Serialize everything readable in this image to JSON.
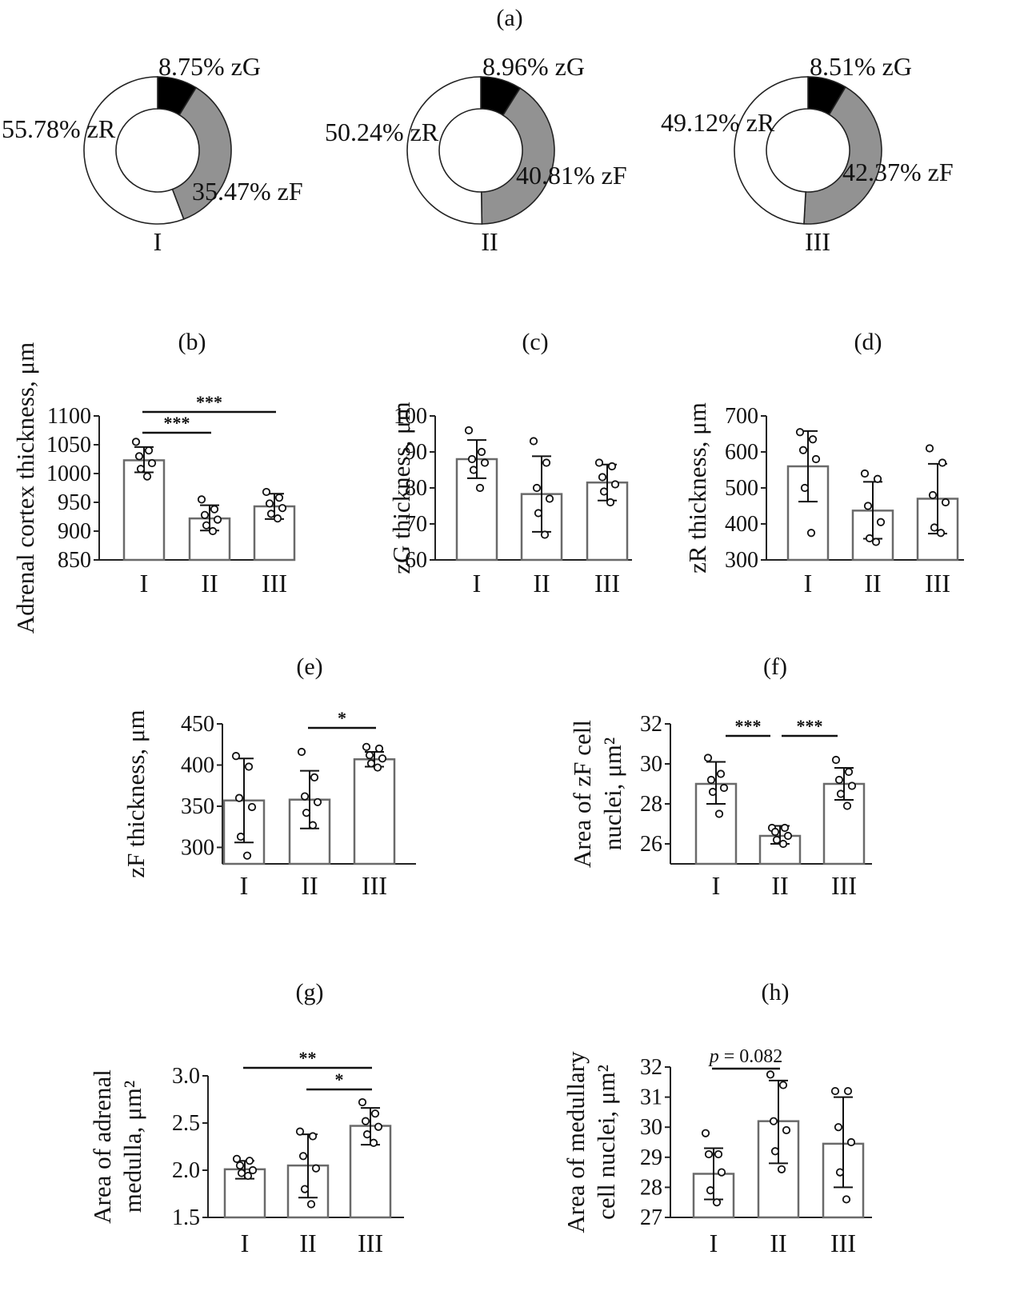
{
  "figure_label": "(a)",
  "chart_data": [
    {
      "panel": "(a)",
      "type": "pie",
      "variant": "donut",
      "slices": [
        {
          "value": 8.75,
          "label": "8.75% zG",
          "color": "#000000"
        },
        {
          "value": 35.47,
          "label": "35.47% zF",
          "color": "#929292"
        },
        {
          "value": 55.78,
          "label": "55.78% zR",
          "color": "#ffffff"
        }
      ],
      "group_label": "I"
    },
    {
      "panel": "(a)",
      "type": "pie",
      "variant": "donut",
      "slices": [
        {
          "value": 8.96,
          "label": "8.96% zG",
          "color": "#000000"
        },
        {
          "value": 40.81,
          "label": "40.81% zF",
          "color": "#929292"
        },
        {
          "value": 50.24,
          "label": "50.24% zR",
          "color": "#ffffff"
        }
      ],
      "group_label": "II"
    },
    {
      "panel": "(a)",
      "type": "pie",
      "variant": "donut",
      "slices": [
        {
          "value": 8.51,
          "label": "8.51% zG",
          "color": "#000000"
        },
        {
          "value": 42.37,
          "label": "42.37% zF",
          "color": "#929292"
        },
        {
          "value": 49.12,
          "label": "49.12% zR",
          "color": "#ffffff"
        }
      ],
      "group_label": "III"
    },
    {
      "panel": "(b)",
      "type": "bar",
      "ylabel": "Adrenal cortex thickness, μm",
      "ylim": [
        850,
        1100
      ],
      "yticks": [
        "850",
        "900",
        "950",
        "1000",
        "1050",
        "1100"
      ],
      "categories": [
        "I",
        "II",
        "III"
      ],
      "values": [
        1023,
        922,
        943
      ],
      "error": [
        [
          1002,
          1046
        ],
        [
          901,
          945
        ],
        [
          921,
          965
        ]
      ],
      "points": [
        [
          1055,
          1040,
          1030,
          1018,
          1008,
          995
        ],
        [
          955,
          938,
          928,
          920,
          910,
          900
        ],
        [
          968,
          958,
          948,
          940,
          930,
          922
        ]
      ],
      "significance": [
        {
          "from": 0,
          "to": 2,
          "label": "***"
        },
        {
          "from": 0,
          "to": 1,
          "label": "***"
        }
      ]
    },
    {
      "panel": "(c)",
      "type": "bar",
      "ylabel": "zG thickness, μm",
      "ylim": [
        60,
        100
      ],
      "yticks": [
        "60",
        "70",
        "80",
        "90",
        "100"
      ],
      "categories": [
        "I",
        "II",
        "III"
      ],
      "values": [
        88,
        78.3,
        81.5
      ],
      "error": [
        [
          82.7,
          93.3
        ],
        [
          67.8,
          88.8
        ],
        [
          76.5,
          86.5
        ]
      ],
      "points": [
        [
          96,
          90,
          88,
          87,
          85,
          80
        ],
        [
          93,
          87,
          80,
          77,
          73,
          67
        ],
        [
          87,
          86,
          83,
          81,
          79,
          76
        ]
      ],
      "significance": []
    },
    {
      "panel": "(d)",
      "type": "bar",
      "ylabel": "zR thickness, μm",
      "ylim": [
        300,
        700
      ],
      "yticks": [
        "300",
        "400",
        "500",
        "600",
        "700"
      ],
      "categories": [
        "I",
        "II",
        "III"
      ],
      "values": [
        560,
        437,
        470
      ],
      "error": [
        [
          462,
          658
        ],
        [
          359,
          517
        ],
        [
          373,
          567
        ]
      ],
      "points": [
        [
          655,
          635,
          605,
          580,
          500,
          375
        ],
        [
          540,
          525,
          450,
          405,
          360,
          350
        ],
        [
          610,
          570,
          480,
          460,
          390,
          375
        ]
      ],
      "significance": []
    },
    {
      "panel": "(e)",
      "type": "bar",
      "ylabel": "zF thickness, μm",
      "ylim": [
        280,
        450
      ],
      "yticks": [
        "300",
        "350",
        "400",
        "450"
      ],
      "categories": [
        "I",
        "II",
        "III"
      ],
      "values": [
        357,
        358,
        407
      ],
      "error": [
        [
          306,
          408
        ],
        [
          323,
          393
        ],
        [
          398,
          416
        ]
      ],
      "points": [
        [
          411,
          398,
          360,
          349,
          313,
          290
        ],
        [
          416,
          385,
          362,
          355,
          342,
          327
        ],
        [
          422,
          420,
          412,
          408,
          402,
          397
        ]
      ],
      "significance": [
        {
          "from": 1,
          "to": 2,
          "label": "*"
        }
      ]
    },
    {
      "panel": "(f)",
      "type": "bar",
      "ylabel": "Area of zF cell nuclei, μm²",
      "ylim": [
        25,
        32
      ],
      "yticks": [
        "26",
        "28",
        "30",
        "32"
      ],
      "categories": [
        "I",
        "II",
        "III"
      ],
      "values": [
        29,
        26.4,
        29
      ],
      "error": [
        [
          28,
          30.1
        ],
        [
          26,
          26.9
        ],
        [
          28.2,
          29.8
        ]
      ],
      "points": [
        [
          30.3,
          29.5,
          29.2,
          28.8,
          28.6,
          27.5
        ],
        [
          26.8,
          26.8,
          26.6,
          26.4,
          26.2,
          26.0
        ],
        [
          30.2,
          29.6,
          29.2,
          28.9,
          28.5,
          27.9
        ]
      ],
      "significance": [
        {
          "from": 0,
          "to": 1,
          "label": "***"
        },
        {
          "from": 1,
          "to": 2,
          "label": "***"
        }
      ]
    },
    {
      "panel": "(g)",
      "type": "bar",
      "ylabel": "Area of adrenal medulla, μm²",
      "ylim": [
        1.5,
        3.0
      ],
      "yticks": [
        "1.5",
        "2.0",
        "2.5",
        "3.0"
      ],
      "categories": [
        "I",
        "II",
        "III"
      ],
      "values": [
        2.01,
        2.05,
        2.47
      ],
      "error": [
        [
          1.91,
          2.1
        ],
        [
          1.71,
          2.38
        ],
        [
          2.27,
          2.66
        ]
      ],
      "points": [
        [
          2.12,
          2.1,
          2.05,
          2.0,
          1.97,
          1.94
        ],
        [
          2.41,
          2.36,
          2.15,
          2.02,
          1.8,
          1.64
        ],
        [
          2.72,
          2.6,
          2.52,
          2.46,
          2.38,
          2.29
        ]
      ],
      "significance": [
        {
          "from": 0,
          "to": 2,
          "label": "**"
        },
        {
          "from": 1,
          "to": 2,
          "label": "*"
        }
      ]
    },
    {
      "panel": "(h)",
      "type": "bar",
      "ylabel": "Area of medullary cell nuclei, μm²",
      "ylim": [
        27,
        32
      ],
      "yticks": [
        "27",
        "28",
        "29",
        "30",
        "31",
        "32"
      ],
      "categories": [
        "I",
        "II",
        "III"
      ],
      "values": [
        28.45,
        30.2,
        29.45
      ],
      "error": [
        [
          27.6,
          29.3
        ],
        [
          28.8,
          31.55
        ],
        [
          28,
          31
        ]
      ],
      "points": [
        [
          29.8,
          29.1,
          29.1,
          28.5,
          27.9,
          27.5
        ],
        [
          31.75,
          31.4,
          30.2,
          29.9,
          29.2,
          28.6
        ],
        [
          31.2,
          31.2,
          30.0,
          29.5,
          28.5,
          27.6
        ]
      ],
      "significance": [
        {
          "from": 0,
          "to": 1,
          "label": "p = 0.082",
          "italic_prefix": "p"
        }
      ]
    }
  ]
}
